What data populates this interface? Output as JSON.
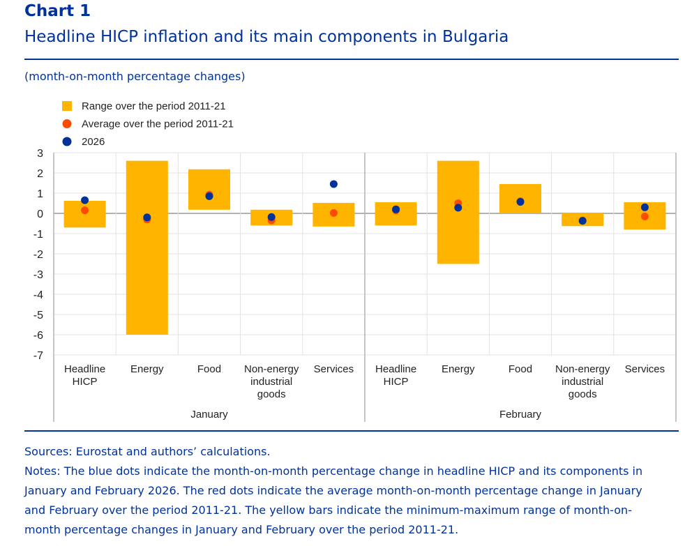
{
  "header": {
    "chart_number": "Chart 1",
    "title": "Headline HICP inflation and its main components in Bulgaria",
    "subtitle": "(month-on-month percentage changes)"
  },
  "footer": {
    "sources": "Sources: Eurostat and authors’ calculations.",
    "notes": "Notes: The blue dots indicate the month-on-month percentage change in headline HICP and its components in January and February 2026. The red dots indicate the average month-on-month percentage change in January and February over the period 2011-21. The yellow bars indicate the minimum-maximum range of month-on-month percentage changes in January and February over the period 2011-21."
  },
  "colors": {
    "range": "#FFB400",
    "average": "#FF4B00",
    "current": "#003299",
    "text_blue": "#003299"
  },
  "chart_data": {
    "type": "bar",
    "title": "Headline HICP inflation and its main components in Bulgaria",
    "subtitle": "(month-on-month percentage changes)",
    "xlabel": "",
    "ylabel": "",
    "ylim": [
      -7,
      3
    ],
    "yticks": [
      3,
      2,
      1,
      0,
      -1,
      -2,
      -3,
      -4,
      -5,
      -6,
      -7
    ],
    "grid": true,
    "legend_position": "top-left",
    "legend": [
      {
        "key": "range",
        "label": "Range over the period 2011-21",
        "marker": "square"
      },
      {
        "key": "average",
        "label": "Average over the period 2011-21",
        "marker": "circle"
      },
      {
        "key": "current",
        "label": "2026",
        "marker": "circle"
      }
    ],
    "groups": [
      {
        "label": "January",
        "categories": [
          {
            "label": [
              "Headline",
              "HICP"
            ],
            "range": [
              -0.7,
              0.62
            ],
            "average": 0.15,
            "current": 0.65
          },
          {
            "label": [
              "Energy"
            ],
            "range": [
              -6.0,
              2.6
            ],
            "average": -0.3,
            "current": -0.2
          },
          {
            "label": [
              "Food"
            ],
            "range": [
              0.18,
              2.18
            ],
            "average": 0.92,
            "current": 0.85
          },
          {
            "label": [
              "Non-energy",
              "industrial",
              "goods"
            ],
            "range": [
              -0.6,
              0.18
            ],
            "average": -0.35,
            "current": -0.18
          },
          {
            "label": [
              "Services"
            ],
            "range": [
              -0.65,
              0.52
            ],
            "average": 0.02,
            "current": 1.45
          }
        ]
      },
      {
        "label": "February",
        "categories": [
          {
            "label": [
              "Headline",
              "HICP"
            ],
            "range": [
              -0.6,
              0.55
            ],
            "average": 0.15,
            "current": 0.2
          },
          {
            "label": [
              "Energy"
            ],
            "range": [
              -2.5,
              2.6
            ],
            "average": 0.5,
            "current": 0.28
          },
          {
            "label": [
              "Food"
            ],
            "range": [
              0.0,
              1.45
            ],
            "average": 0.6,
            "current": 0.57
          },
          {
            "label": [
              "Non-energy",
              "industrial",
              "goods"
            ],
            "range": [
              -0.63,
              0.0
            ],
            "average": -0.35,
            "current": -0.37
          },
          {
            "label": [
              "Services"
            ],
            "range": [
              -0.8,
              0.55
            ],
            "average": -0.15,
            "current": 0.3
          }
        ]
      }
    ]
  }
}
